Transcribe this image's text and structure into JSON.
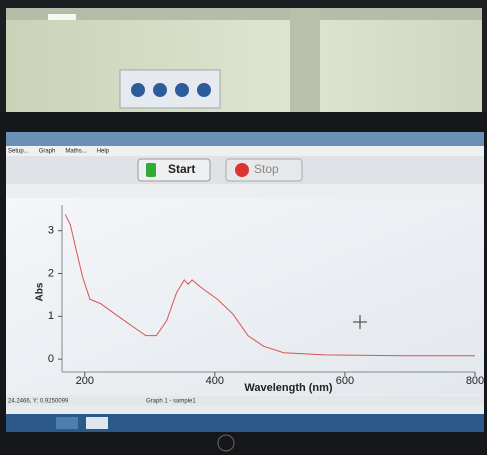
{
  "menu": [
    "Setup...",
    "Graph",
    "Maths...",
    "Help"
  ],
  "toolbar": {
    "start": "Start",
    "stop": "Stop"
  },
  "chart_data": {
    "type": "line",
    "x_label": "Wavelength (nm)",
    "y_label": "Abs",
    "x": [
      170,
      178,
      186,
      197,
      208,
      224,
      247,
      270,
      294,
      310,
      326,
      341,
      353,
      359,
      365,
      381,
      404,
      428,
      451,
      475,
      506,
      569,
      694,
      800
    ],
    "values": [
      3.38,
      3.13,
      2.6,
      1.9,
      1.4,
      1.3,
      1.05,
      0.8,
      0.55,
      0.55,
      0.9,
      1.55,
      1.85,
      1.75,
      1.85,
      1.65,
      1.4,
      1.05,
      0.55,
      0.3,
      0.15,
      0.1,
      0.08,
      0.08
    ],
    "color": "#d9534f",
    "xlim": [
      165,
      800
    ],
    "ylim": [
      -0.3,
      3.6
    ],
    "xticks": [
      200,
      400,
      600,
      800
    ],
    "yticks": [
      0,
      1,
      2,
      3
    ],
    "grid": false
  },
  "status": [
    "24.2466, Y: 0.9250099",
    "Graph 1 - sample1"
  ]
}
